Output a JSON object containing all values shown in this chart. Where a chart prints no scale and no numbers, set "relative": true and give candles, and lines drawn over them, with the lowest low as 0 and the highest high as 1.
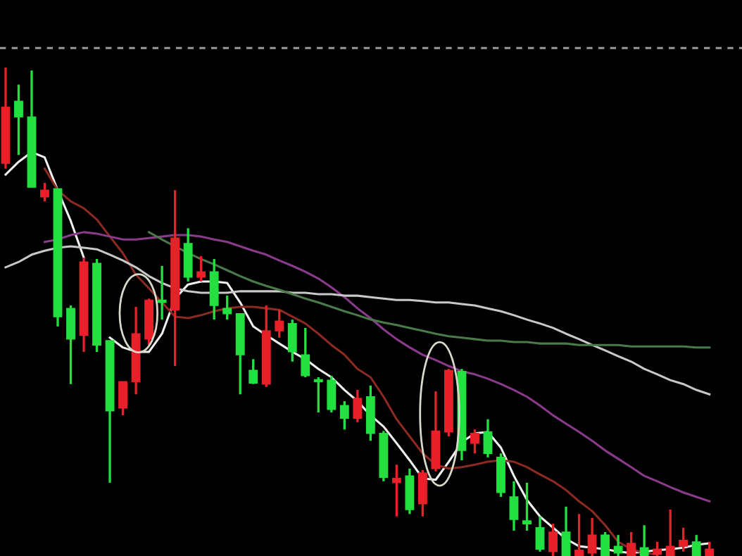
{
  "chart_data": {
    "type": "candlestick",
    "relative": true,
    "categories": [
      null,
      null,
      null,
      null,
      null,
      null,
      null,
      null,
      null,
      null,
      null,
      null,
      null,
      null,
      null,
      null,
      null,
      null,
      null,
      null,
      null,
      null,
      null,
      null,
      null,
      null,
      null,
      null,
      null,
      null,
      null,
      null,
      null,
      null,
      null,
      null,
      null,
      null,
      null,
      null,
      null,
      null,
      null,
      null,
      null,
      null,
      null,
      null,
      null,
      null,
      null,
      null,
      null,
      null,
      null
    ],
    "ohlc": [
      [
        0.804,
        1.0,
        0.793,
        0.919
      ],
      [
        0.931,
        0.965,
        0.821,
        0.899
      ],
      [
        0.899,
        0.994,
        0.755,
        0.755
      ],
      [
        0.735,
        0.764,
        0.726,
        0.749
      ],
      [
        0.752,
        0.752,
        0.47,
        0.49
      ],
      [
        0.507,
        0.513,
        0.352,
        0.444
      ],
      [
        0.452,
        0.611,
        0.418,
        0.602
      ],
      [
        0.599,
        0.608,
        0.418,
        0.432
      ],
      [
        0.441,
        0.441,
        0.15,
        0.297
      ],
      [
        0.303,
        0.357,
        0.288,
        0.357
      ],
      [
        0.357,
        0.51,
        0.331,
        0.455
      ],
      [
        0.444,
        0.527,
        0.432,
        0.524
      ],
      [
        0.524,
        0.594,
        0.484,
        0.519
      ],
      [
        0.504,
        0.749,
        0.389,
        0.651
      ],
      [
        0.64,
        0.671,
        0.562,
        0.571
      ],
      [
        0.571,
        0.614,
        0.562,
        0.582
      ],
      [
        0.582,
        0.608,
        0.484,
        0.513
      ],
      [
        0.507,
        0.533,
        0.484,
        0.496
      ],
      [
        0.496,
        0.496,
        0.331,
        0.412
      ],
      [
        0.38,
        0.403,
        0.352,
        0.354
      ],
      [
        0.352,
        0.513,
        0.346,
        0.461
      ],
      [
        0.461,
        0.504,
        0.447,
        0.481
      ],
      [
        0.476,
        0.484,
        0.398,
        0.418
      ],
      [
        0.412,
        0.467,
        0.366,
        0.369
      ],
      [
        0.36,
        0.366,
        0.294,
        0.357
      ],
      [
        0.36,
        0.369,
        0.294,
        0.3
      ],
      [
        0.308,
        0.317,
        0.259,
        0.282
      ],
      [
        0.282,
        0.34,
        0.274,
        0.323
      ],
      [
        0.326,
        0.349,
        0.236,
        0.251
      ],
      [
        0.251,
        0.256,
        0.153,
        0.161
      ],
      [
        0.15,
        0.187,
        0.081,
        0.159
      ],
      [
        0.164,
        0.179,
        0.086,
        0.095
      ],
      [
        0.107,
        0.176,
        0.081,
        0.17
      ],
      [
        0.179,
        0.337,
        0.173,
        0.256
      ],
      [
        0.254,
        0.383,
        0.245,
        0.38
      ],
      [
        0.378,
        0.383,
        0.196,
        0.216
      ],
      [
        0.231,
        0.259,
        0.21,
        0.251
      ],
      [
        0.254,
        0.28,
        0.202,
        0.21
      ],
      [
        0.202,
        0.21,
        0.121,
        0.13
      ],
      [
        0.121,
        0.153,
        0.052,
        0.075
      ],
      [
        0.072,
        0.15,
        0.052,
        0.066
      ],
      [
        0.058,
        0.081,
        0.009,
        0.014
      ],
      [
        0.009,
        0.066,
        0.0,
        0.049
      ],
      [
        0.049,
        0.101,
        0.0,
        0.0
      ],
      [
        0.0,
        0.086,
        0.0,
        0.012
      ],
      [
        0.006,
        0.078,
        0.0,
        0.043
      ],
      [
        0.043,
        0.049,
        0.0,
        0.0
      ],
      [
        0.02,
        0.043,
        0.0,
        0.006
      ],
      [
        0.0,
        0.049,
        0.0,
        0.026
      ],
      [
        0.017,
        0.063,
        0.0,
        0.0
      ],
      [
        0.003,
        0.029,
        0.0,
        0.014
      ],
      [
        0.0,
        0.095,
        0.0,
        0.02
      ],
      [
        0.02,
        0.058,
        0.009,
        0.032
      ],
      [
        0.029,
        0.043,
        0.0,
        0.0
      ],
      [
        0.0,
        0.029,
        0.0,
        0.014
      ]
    ],
    "colors": [
      "#e8202a",
      "#22e040",
      "#22e040",
      "#e8202a",
      "#22e040",
      "#22e040",
      "#e8202a",
      "#22e040",
      "#22e040",
      "#e8202a",
      "#e8202a",
      "#e8202a",
      "#22e040",
      "#e8202a",
      "#22e040",
      "#e8202a",
      "#22e040",
      "#22e040",
      "#22e040",
      "#22e040",
      "#e8202a",
      "#e8202a",
      "#22e040",
      "#22e040",
      "#22e040",
      "#22e040",
      "#22e040",
      "#e8202a",
      "#22e040",
      "#22e040",
      "#e8202a",
      "#22e040",
      "#e8202a",
      "#e8202a",
      "#e8202a",
      "#22e040",
      "#e8202a",
      "#22e040",
      "#22e040",
      "#22e040",
      "#22e040",
      "#22e040",
      "#e8202a",
      "#22e040",
      "#e8202a",
      "#e8202a",
      "#22e040",
      "#22e040",
      "#e8202a",
      "#22e040",
      "#e8202a",
      "#e8202a",
      "#e8202a",
      "#22e040",
      "#e8202a"
    ],
    "series": [
      {
        "type": "line",
        "color": "#f0f0f0",
        "values": [
          0.781,
          0.807,
          0.827,
          0.816,
          0.749,
          0.686,
          0.611,
          null,
          0.447,
          0.427,
          0.418,
          0.418,
          0.455,
          0.527,
          0.556,
          0.562,
          0.562,
          0.559,
          0.519,
          0.47,
          0.452,
          0.435,
          0.418,
          0.403,
          0.383,
          0.366,
          0.34,
          0.317,
          0.288,
          0.265,
          0.231,
          0.196,
          0.159,
          0.156,
          0.193,
          0.233,
          0.251,
          0.254,
          0.222,
          0.164,
          0.115,
          0.081,
          0.058,
          0.035,
          0.02,
          0.017,
          0.014,
          0.009,
          0.006,
          0.009,
          0.012,
          0.014,
          0.017,
          0.023,
          0.026
        ]
      },
      {
        "type": "line",
        "color": "#8b2a22",
        "values": [
          null,
          null,
          null,
          0.793,
          0.749,
          0.726,
          0.712,
          0.689,
          0.654,
          0.62,
          0.576,
          0.548,
          0.519,
          0.49,
          0.487,
          0.493,
          0.501,
          0.507,
          0.51,
          0.51,
          0.507,
          0.504,
          0.49,
          0.476,
          0.455,
          0.432,
          0.412,
          0.383,
          0.366,
          0.326,
          0.28,
          0.245,
          0.21,
          0.187,
          0.179,
          0.182,
          0.187,
          0.193,
          0.196,
          0.193,
          0.182,
          0.167,
          0.153,
          0.135,
          0.112,
          0.092,
          0.063,
          0.029,
          0.014,
          0.006,
          0.003,
          null,
          null,
          null,
          null
        ]
      },
      {
        "type": "line",
        "color": "#8a3a8a",
        "values": [
          null,
          null,
          null,
          0.643,
          0.648,
          0.657,
          0.663,
          0.66,
          0.654,
          0.648,
          0.648,
          0.651,
          0.654,
          0.657,
          0.657,
          0.654,
          0.648,
          0.643,
          0.634,
          0.625,
          0.617,
          0.605,
          0.594,
          0.582,
          0.568,
          0.55,
          0.53,
          0.507,
          0.487,
          0.464,
          0.444,
          0.427,
          0.412,
          0.401,
          0.389,
          0.378,
          0.372,
          0.363,
          0.352,
          0.34,
          0.326,
          0.308,
          0.288,
          0.271,
          0.254,
          0.236,
          0.216,
          0.199,
          0.182,
          0.164,
          0.153,
          0.141,
          0.13,
          0.121,
          0.112
        ]
      },
      {
        "type": "line",
        "color": "#c8c8c8",
        "values": [
          0.591,
          0.602,
          0.617,
          0.625,
          0.631,
          0.634,
          0.631,
          0.628,
          0.617,
          0.605,
          0.591,
          0.573,
          0.559,
          0.548,
          0.542,
          0.539,
          0.539,
          0.539,
          0.542,
          0.542,
          0.542,
          0.542,
          0.539,
          0.539,
          0.536,
          0.536,
          0.533,
          0.533,
          0.53,
          0.527,
          0.524,
          0.524,
          0.522,
          0.519,
          0.519,
          0.516,
          0.513,
          0.507,
          0.501,
          0.493,
          0.484,
          0.476,
          0.467,
          0.455,
          0.444,
          0.432,
          0.421,
          0.409,
          0.398,
          0.383,
          0.372,
          0.36,
          0.352,
          0.34,
          0.331
        ]
      },
      {
        "type": "line",
        "color": "#4a7a4a",
        "values": [
          null,
          null,
          null,
          null,
          null,
          null,
          null,
          null,
          null,
          null,
          null,
          0.663,
          0.648,
          0.634,
          0.62,
          0.608,
          0.597,
          0.585,
          0.573,
          0.562,
          0.553,
          0.545,
          0.536,
          0.527,
          0.519,
          0.51,
          0.501,
          0.493,
          0.484,
          0.478,
          0.473,
          0.467,
          0.461,
          0.455,
          0.45,
          0.447,
          0.444,
          0.441,
          0.441,
          0.438,
          0.438,
          0.435,
          0.435,
          0.435,
          0.432,
          0.432,
          0.432,
          0.432,
          0.429,
          0.429,
          0.429,
          0.429,
          0.429,
          0.427,
          0.427
        ]
      }
    ],
    "ref_lines": [
      {
        "axis": "y",
        "value": 1.04,
        "color": "#9a9a9a",
        "line_style": "dashed"
      }
    ]
  }
}
